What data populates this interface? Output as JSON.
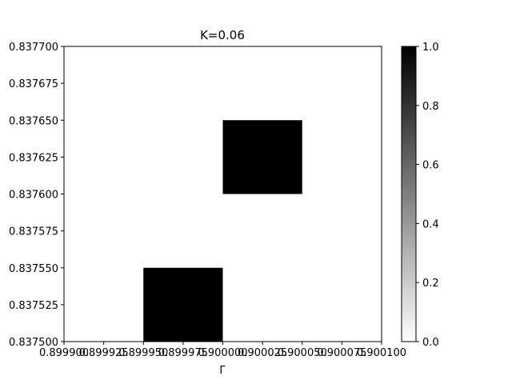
{
  "chart_data": {
    "type": "heatmap",
    "title": "K=0.06",
    "xlabel": "Γ",
    "ylabel": "",
    "xlim": [
      0.8999,
      0.9001
    ],
    "ylim": [
      0.8375,
      0.8377
    ],
    "x_ticks": [
      0.8999,
      0.899925,
      0.89995,
      0.899975,
      0.9,
      0.900025,
      0.90005,
      0.900075,
      0.9001
    ],
    "x_tick_labels": [
      "0.899900",
      "0.899925",
      "0.899950",
      "0.899975",
      "0.900000",
      "0.900025",
      "0.900050",
      "0.900075",
      "0.900100"
    ],
    "y_ticks": [
      0.8375,
      0.837525,
      0.83755,
      0.837575,
      0.8376,
      0.837625,
      0.83765,
      0.837675,
      0.8377
    ],
    "y_tick_labels": [
      "0.837500",
      "0.837525",
      "0.837550",
      "0.837575",
      "0.837600",
      "0.837625",
      "0.837650",
      "0.837675",
      "0.837700"
    ],
    "cells": [
      {
        "x0": 0.89995,
        "x1": 0.9,
        "y0": 0.8375,
        "y1": 0.83755,
        "value": 1.0
      },
      {
        "x0": 0.9,
        "x1": 0.90005,
        "y0": 0.8376,
        "y1": 0.83765,
        "value": 1.0
      }
    ],
    "background_value": 0.0,
    "colorbar": {
      "colormap": "gray_r",
      "vmin": 0.0,
      "vmax": 1.0,
      "ticks": [
        0.0,
        0.2,
        0.4,
        0.6,
        0.8,
        1.0
      ],
      "tick_labels": [
        "0.0",
        "0.2",
        "0.4",
        "0.6",
        "0.8",
        "1.0"
      ]
    },
    "grid": false
  }
}
